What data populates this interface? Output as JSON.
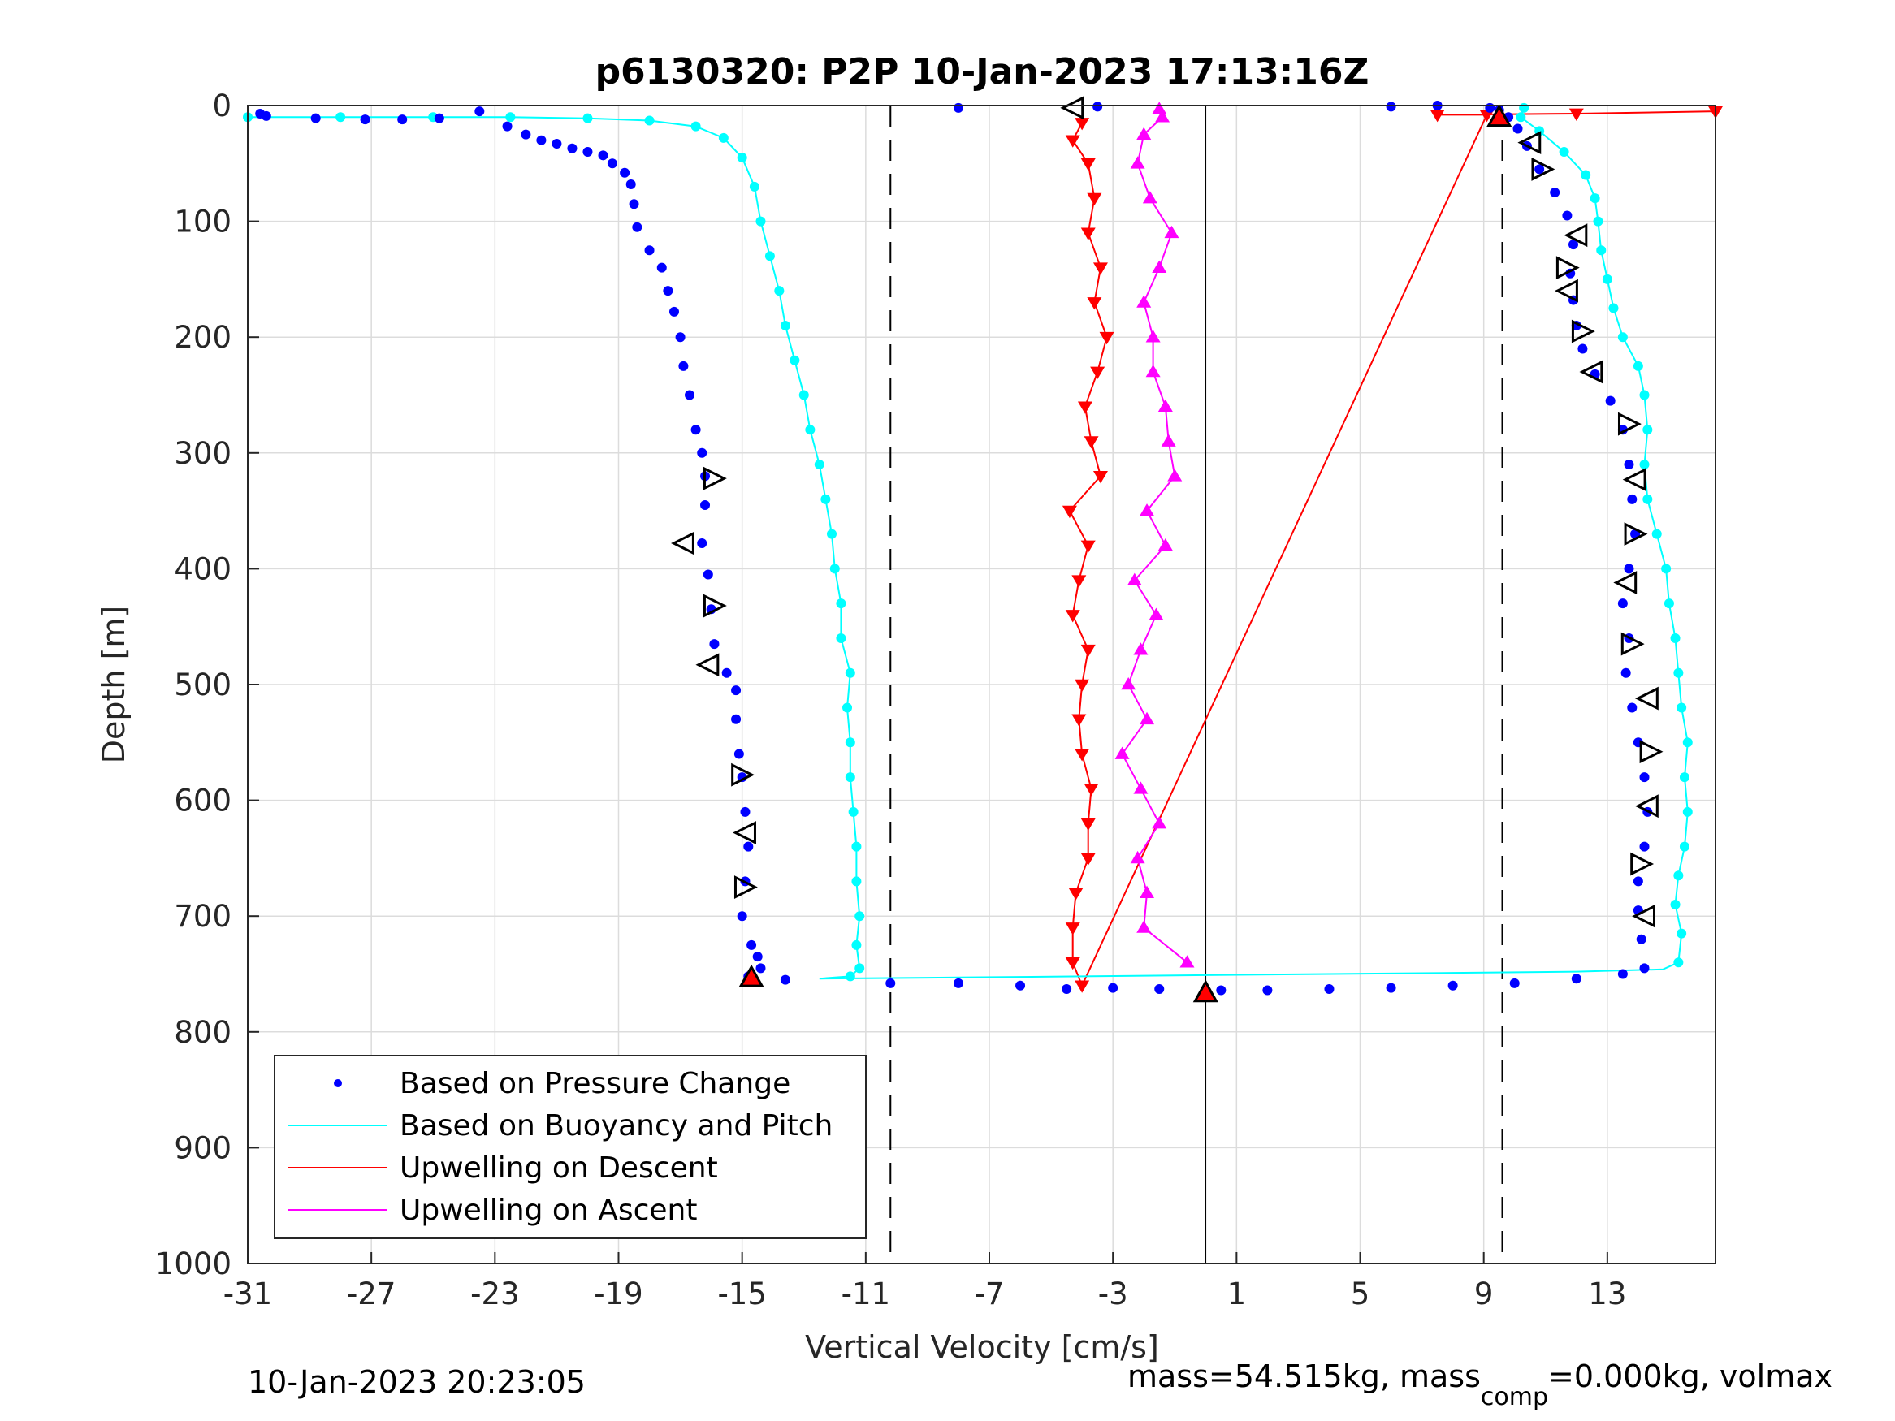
{
  "footer": {
    "timestamp": "10-Jan-2023 20:23:05",
    "mass_info_prefix": "mass=54.515kg, mass",
    "mass_info_sub": "comp",
    "mass_info_suffix": "=0.000kg, volmax"
  },
  "chart_data": {
    "type": "scatter",
    "title": "p6130320: P2P 10-Jan-2023 17:13:16Z",
    "xlabel": "Vertical Velocity [cm/s]",
    "ylabel": "Depth [m]",
    "xlim": [
      -31,
      16.5
    ],
    "ylim": [
      0,
      1000
    ],
    "y_reversed": true,
    "xticks": [
      -31,
      -27,
      -23,
      -19,
      -15,
      -11,
      -7,
      -3,
      1,
      5,
      9,
      13
    ],
    "yticks": [
      0,
      100,
      200,
      300,
      400,
      500,
      600,
      700,
      800,
      900,
      1000
    ],
    "grid": true,
    "legend_position": "bottom-left",
    "reference_lines": {
      "dashed_x": [
        -10.2,
        9.6
      ],
      "solid_x": 0
    },
    "series": [
      {
        "name": "Based on Pressure Change",
        "color": "#0000ff",
        "style": "dots",
        "descent": [
          [
            -30.6,
            7
          ],
          [
            -30.4,
            9
          ],
          [
            -28.8,
            11
          ],
          [
            -27.2,
            12
          ],
          [
            -26,
            12
          ],
          [
            -24.8,
            11
          ],
          [
            -23.5,
            5
          ],
          [
            -22.6,
            18
          ],
          [
            -22,
            25
          ],
          [
            -21.5,
            30
          ],
          [
            -21,
            33
          ],
          [
            -20.5,
            37
          ],
          [
            -20,
            40
          ],
          [
            -19.5,
            43
          ],
          [
            -19.2,
            50
          ],
          [
            -18.8,
            58
          ],
          [
            -18.6,
            68
          ],
          [
            -18.5,
            85
          ],
          [
            -18.4,
            105
          ],
          [
            -18,
            125
          ],
          [
            -17.6,
            140
          ],
          [
            -17.4,
            160
          ],
          [
            -17.2,
            178
          ],
          [
            -17,
            200
          ],
          [
            -16.9,
            225
          ],
          [
            -16.7,
            250
          ],
          [
            -16.5,
            280
          ],
          [
            -16.3,
            300
          ],
          [
            -16.2,
            320
          ],
          [
            -16.2,
            345
          ],
          [
            -16.3,
            378
          ],
          [
            -16.1,
            405
          ],
          [
            -16,
            435
          ],
          [
            -15.9,
            465
          ],
          [
            -15.5,
            490
          ],
          [
            -15.2,
            505
          ],
          [
            -15.2,
            530
          ],
          [
            -15.1,
            560
          ],
          [
            -15,
            580
          ],
          [
            -14.9,
            610
          ],
          [
            -14.8,
            640
          ],
          [
            -14.9,
            670
          ],
          [
            -15,
            700
          ],
          [
            -14.7,
            725
          ],
          [
            -14.5,
            735
          ],
          [
            -14.4,
            745
          ],
          [
            -14.8,
            752
          ],
          [
            -13.6,
            755
          ]
        ],
        "bottom_turn": [
          [
            -10.2,
            758
          ],
          [
            -8,
            758
          ],
          [
            -6,
            760
          ],
          [
            -4.5,
            763
          ],
          [
            -3,
            762
          ],
          [
            -1.5,
            763
          ],
          [
            0.5,
            764
          ],
          [
            2,
            764
          ],
          [
            4,
            763
          ],
          [
            6,
            762
          ],
          [
            8,
            760
          ],
          [
            10,
            758
          ],
          [
            12,
            754
          ],
          [
            13.5,
            750
          ]
        ],
        "ascent": [
          [
            14.2,
            745
          ],
          [
            14.1,
            720
          ],
          [
            14,
            695
          ],
          [
            14,
            670
          ],
          [
            14.2,
            640
          ],
          [
            14.3,
            610
          ],
          [
            14.2,
            580
          ],
          [
            14,
            550
          ],
          [
            13.8,
            520
          ],
          [
            13.6,
            490
          ],
          [
            13.7,
            460
          ],
          [
            13.5,
            430
          ],
          [
            13.7,
            400
          ],
          [
            13.9,
            370
          ],
          [
            13.8,
            340
          ],
          [
            13.7,
            310
          ],
          [
            13.5,
            280
          ],
          [
            13.1,
            255
          ],
          [
            12.6,
            232
          ],
          [
            12.2,
            210
          ],
          [
            12,
            190
          ],
          [
            11.9,
            168
          ],
          [
            11.8,
            145
          ],
          [
            11.9,
            120
          ],
          [
            11.7,
            95
          ],
          [
            11.3,
            75
          ],
          [
            10.8,
            55
          ],
          [
            10.4,
            35
          ],
          [
            10.1,
            20
          ],
          [
            9.8,
            10
          ],
          [
            9.5,
            4
          ],
          [
            9.2,
            2
          ],
          [
            7.5,
            0
          ],
          [
            6,
            1
          ],
          [
            -8,
            2
          ],
          [
            -3.5,
            1
          ]
        ]
      },
      {
        "name": "Based on Buoyancy and Pitch",
        "color": "#00ffff",
        "style": "line+circles",
        "descent": [
          [
            -31,
            10
          ],
          [
            -28,
            10
          ],
          [
            -25,
            10
          ],
          [
            -22.5,
            10
          ],
          [
            -20,
            11
          ],
          [
            -18,
            13
          ],
          [
            -16.5,
            18
          ],
          [
            -15.6,
            28
          ],
          [
            -15,
            45
          ],
          [
            -14.6,
            70
          ],
          [
            -14.4,
            100
          ],
          [
            -14.1,
            130
          ],
          [
            -13.8,
            160
          ],
          [
            -13.6,
            190
          ],
          [
            -13.3,
            220
          ],
          [
            -13,
            250
          ],
          [
            -12.8,
            280
          ],
          [
            -12.5,
            310
          ],
          [
            -12.3,
            340
          ],
          [
            -12.1,
            370
          ],
          [
            -12,
            400
          ],
          [
            -11.8,
            430
          ],
          [
            -11.8,
            460
          ],
          [
            -11.5,
            490
          ],
          [
            -11.6,
            520
          ],
          [
            -11.5,
            550
          ],
          [
            -11.5,
            580
          ],
          [
            -11.4,
            610
          ],
          [
            -11.3,
            640
          ],
          [
            -11.3,
            670
          ],
          [
            -11.2,
            700
          ],
          [
            -11.3,
            725
          ],
          [
            -11.2,
            745
          ],
          [
            -11.5,
            752
          ]
        ],
        "bottom_turn": [
          [
            -12.5,
            754
          ],
          [
            -8,
            753
          ],
          [
            -4,
            752
          ],
          [
            0,
            751
          ],
          [
            4,
            750
          ],
          [
            8,
            749
          ],
          [
            12,
            748
          ],
          [
            14.8,
            746
          ]
        ],
        "ascent": [
          [
            15.3,
            740
          ],
          [
            15.4,
            715
          ],
          [
            15.2,
            690
          ],
          [
            15.3,
            665
          ],
          [
            15.5,
            640
          ],
          [
            15.6,
            610
          ],
          [
            15.5,
            580
          ],
          [
            15.6,
            550
          ],
          [
            15.4,
            520
          ],
          [
            15.3,
            490
          ],
          [
            15.2,
            460
          ],
          [
            15,
            430
          ],
          [
            14.9,
            400
          ],
          [
            14.6,
            370
          ],
          [
            14.3,
            340
          ],
          [
            14.2,
            310
          ],
          [
            14.3,
            280
          ],
          [
            14.2,
            250
          ],
          [
            14,
            225
          ],
          [
            13.5,
            200
          ],
          [
            13.2,
            175
          ],
          [
            13,
            150
          ],
          [
            12.8,
            125
          ],
          [
            12.7,
            100
          ],
          [
            12.6,
            80
          ],
          [
            12.3,
            60
          ],
          [
            11.6,
            40
          ],
          [
            10.8,
            22
          ],
          [
            10.2,
            10
          ],
          [
            10.3,
            2
          ]
        ]
      },
      {
        "name": "Upwelling on Descent",
        "color": "#ff0000",
        "style": "line+down-triangles",
        "points": [
          [
            -4,
            15
          ],
          [
            -4.3,
            30
          ],
          [
            -3.8,
            50
          ],
          [
            -3.6,
            80
          ],
          [
            -3.8,
            110
          ],
          [
            -3.4,
            140
          ],
          [
            -3.6,
            170
          ],
          [
            -3.2,
            200
          ],
          [
            -3.5,
            230
          ],
          [
            -3.9,
            260
          ],
          [
            -3.7,
            290
          ],
          [
            -3.4,
            320
          ],
          [
            -4.4,
            350
          ],
          [
            -3.8,
            380
          ],
          [
            -4.1,
            410
          ],
          [
            -4.3,
            440
          ],
          [
            -3.8,
            470
          ],
          [
            -4,
            500
          ],
          [
            -4.1,
            530
          ],
          [
            -4,
            560
          ],
          [
            -3.7,
            590
          ],
          [
            -3.8,
            620
          ],
          [
            -3.8,
            650
          ],
          [
            -4.2,
            680
          ],
          [
            -4.3,
            710
          ],
          [
            -4.3,
            740
          ],
          [
            -4,
            760
          ],
          [
            9.1,
            8
          ],
          [
            7.5,
            8
          ],
          [
            12,
            7
          ],
          [
            16.5,
            5
          ]
        ]
      },
      {
        "name": "Upwelling on Ascent",
        "color": "#ff00ff",
        "style": "line+up-triangles",
        "points": [
          [
            -0.6,
            740
          ],
          [
            -2,
            710
          ],
          [
            -1.9,
            680
          ],
          [
            -2.2,
            650
          ],
          [
            -1.5,
            620
          ],
          [
            -2.1,
            590
          ],
          [
            -2.7,
            560
          ],
          [
            -1.9,
            530
          ],
          [
            -2.5,
            500
          ],
          [
            -2.1,
            470
          ],
          [
            -1.6,
            440
          ],
          [
            -2.3,
            410
          ],
          [
            -1.3,
            380
          ],
          [
            -1.9,
            350
          ],
          [
            -1,
            320
          ],
          [
            -1.2,
            290
          ],
          [
            -1.3,
            260
          ],
          [
            -1.7,
            230
          ],
          [
            -1.7,
            200
          ],
          [
            -2,
            170
          ],
          [
            -1.5,
            140
          ],
          [
            -1.1,
            110
          ],
          [
            -1.8,
            80
          ],
          [
            -2.2,
            50
          ],
          [
            -2,
            25
          ],
          [
            -1.4,
            10
          ],
          [
            -1.5,
            3
          ]
        ]
      }
    ],
    "direction_markers": [
      {
        "x": -15.9,
        "y": 322,
        "dir": "right"
      },
      {
        "x": -16.9,
        "y": 378,
        "dir": "left"
      },
      {
        "x": -15.9,
        "y": 432,
        "dir": "right"
      },
      {
        "x": -16.1,
        "y": 483,
        "dir": "left"
      },
      {
        "x": -15.0,
        "y": 578,
        "dir": "right"
      },
      {
        "x": -14.9,
        "y": 628,
        "dir": "left"
      },
      {
        "x": -14.9,
        "y": 675,
        "dir": "right"
      },
      {
        "x": -4.3,
        "y": 2,
        "dir": "left"
      },
      {
        "x": 10.5,
        "y": 32,
        "dir": "left"
      },
      {
        "x": 10.9,
        "y": 55,
        "dir": "right"
      },
      {
        "x": 12.0,
        "y": 112,
        "dir": "left"
      },
      {
        "x": 11.7,
        "y": 140,
        "dir": "right"
      },
      {
        "x": 11.7,
        "y": 160,
        "dir": "left"
      },
      {
        "x": 12.2,
        "y": 195,
        "dir": "right"
      },
      {
        "x": 12.5,
        "y": 230,
        "dir": "left"
      },
      {
        "x": 13.7,
        "y": 275,
        "dir": "right"
      },
      {
        "x": 13.9,
        "y": 323,
        "dir": "left"
      },
      {
        "x": 13.9,
        "y": 370,
        "dir": "right"
      },
      {
        "x": 13.6,
        "y": 412,
        "dir": "left"
      },
      {
        "x": 13.8,
        "y": 465,
        "dir": "right"
      },
      {
        "x": 14.3,
        "y": 512,
        "dir": "left"
      },
      {
        "x": 14.4,
        "y": 558,
        "dir": "right"
      },
      {
        "x": 14.3,
        "y": 605,
        "dir": "left"
      },
      {
        "x": 14.1,
        "y": 655,
        "dir": "right"
      },
      {
        "x": 14.2,
        "y": 700,
        "dir": "left"
      }
    ],
    "turn_markers": [
      {
        "x": -14.7,
        "y": 753
      },
      {
        "x": 0.0,
        "y": 766
      },
      {
        "x": 9.5,
        "y": 10
      }
    ]
  }
}
